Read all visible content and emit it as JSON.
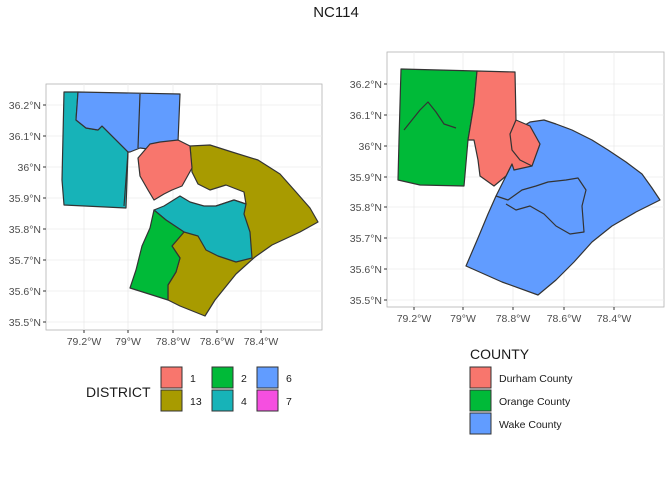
{
  "figure": {
    "title": "NC114",
    "left_panel": {
      "y_ticks": [
        "36.2°N",
        "36.1°N",
        "36°N",
        "35.9°N",
        "35.8°N",
        "35.7°N",
        "35.6°N",
        "35.5°N"
      ],
      "x_ticks": [
        "79.2°W",
        "79°W",
        "78.8°W",
        "78.6°W",
        "78.4°W"
      ],
      "legend_title": "DISTRICT",
      "legend": [
        {
          "label": "1",
          "color": "#F8766D"
        },
        {
          "label": "2",
          "color": "#00BA38"
        },
        {
          "label": "6",
          "color": "#619CFF"
        },
        {
          "label": "13",
          "color": "#A89B00"
        },
        {
          "label": "4",
          "color": "#17B3B8"
        },
        {
          "label": "7",
          "color": "#F54FE0"
        }
      ]
    },
    "right_panel": {
      "y_ticks": [
        "36.2°N",
        "36.1°N",
        "36°N",
        "35.9°N",
        "35.8°N",
        "35.7°N",
        "35.6°N",
        "35.5°N"
      ],
      "x_ticks": [
        "79.2°W",
        "79°W",
        "78.8°W",
        "78.6°W",
        "78.4°W"
      ],
      "legend_title": "COUNTY",
      "legend": [
        {
          "label": "Durham County",
          "color": "#F8766D"
        },
        {
          "label": "Orange County",
          "color": "#00BA38"
        },
        {
          "label": "Wake County",
          "color": "#619CFF"
        }
      ]
    }
  }
}
